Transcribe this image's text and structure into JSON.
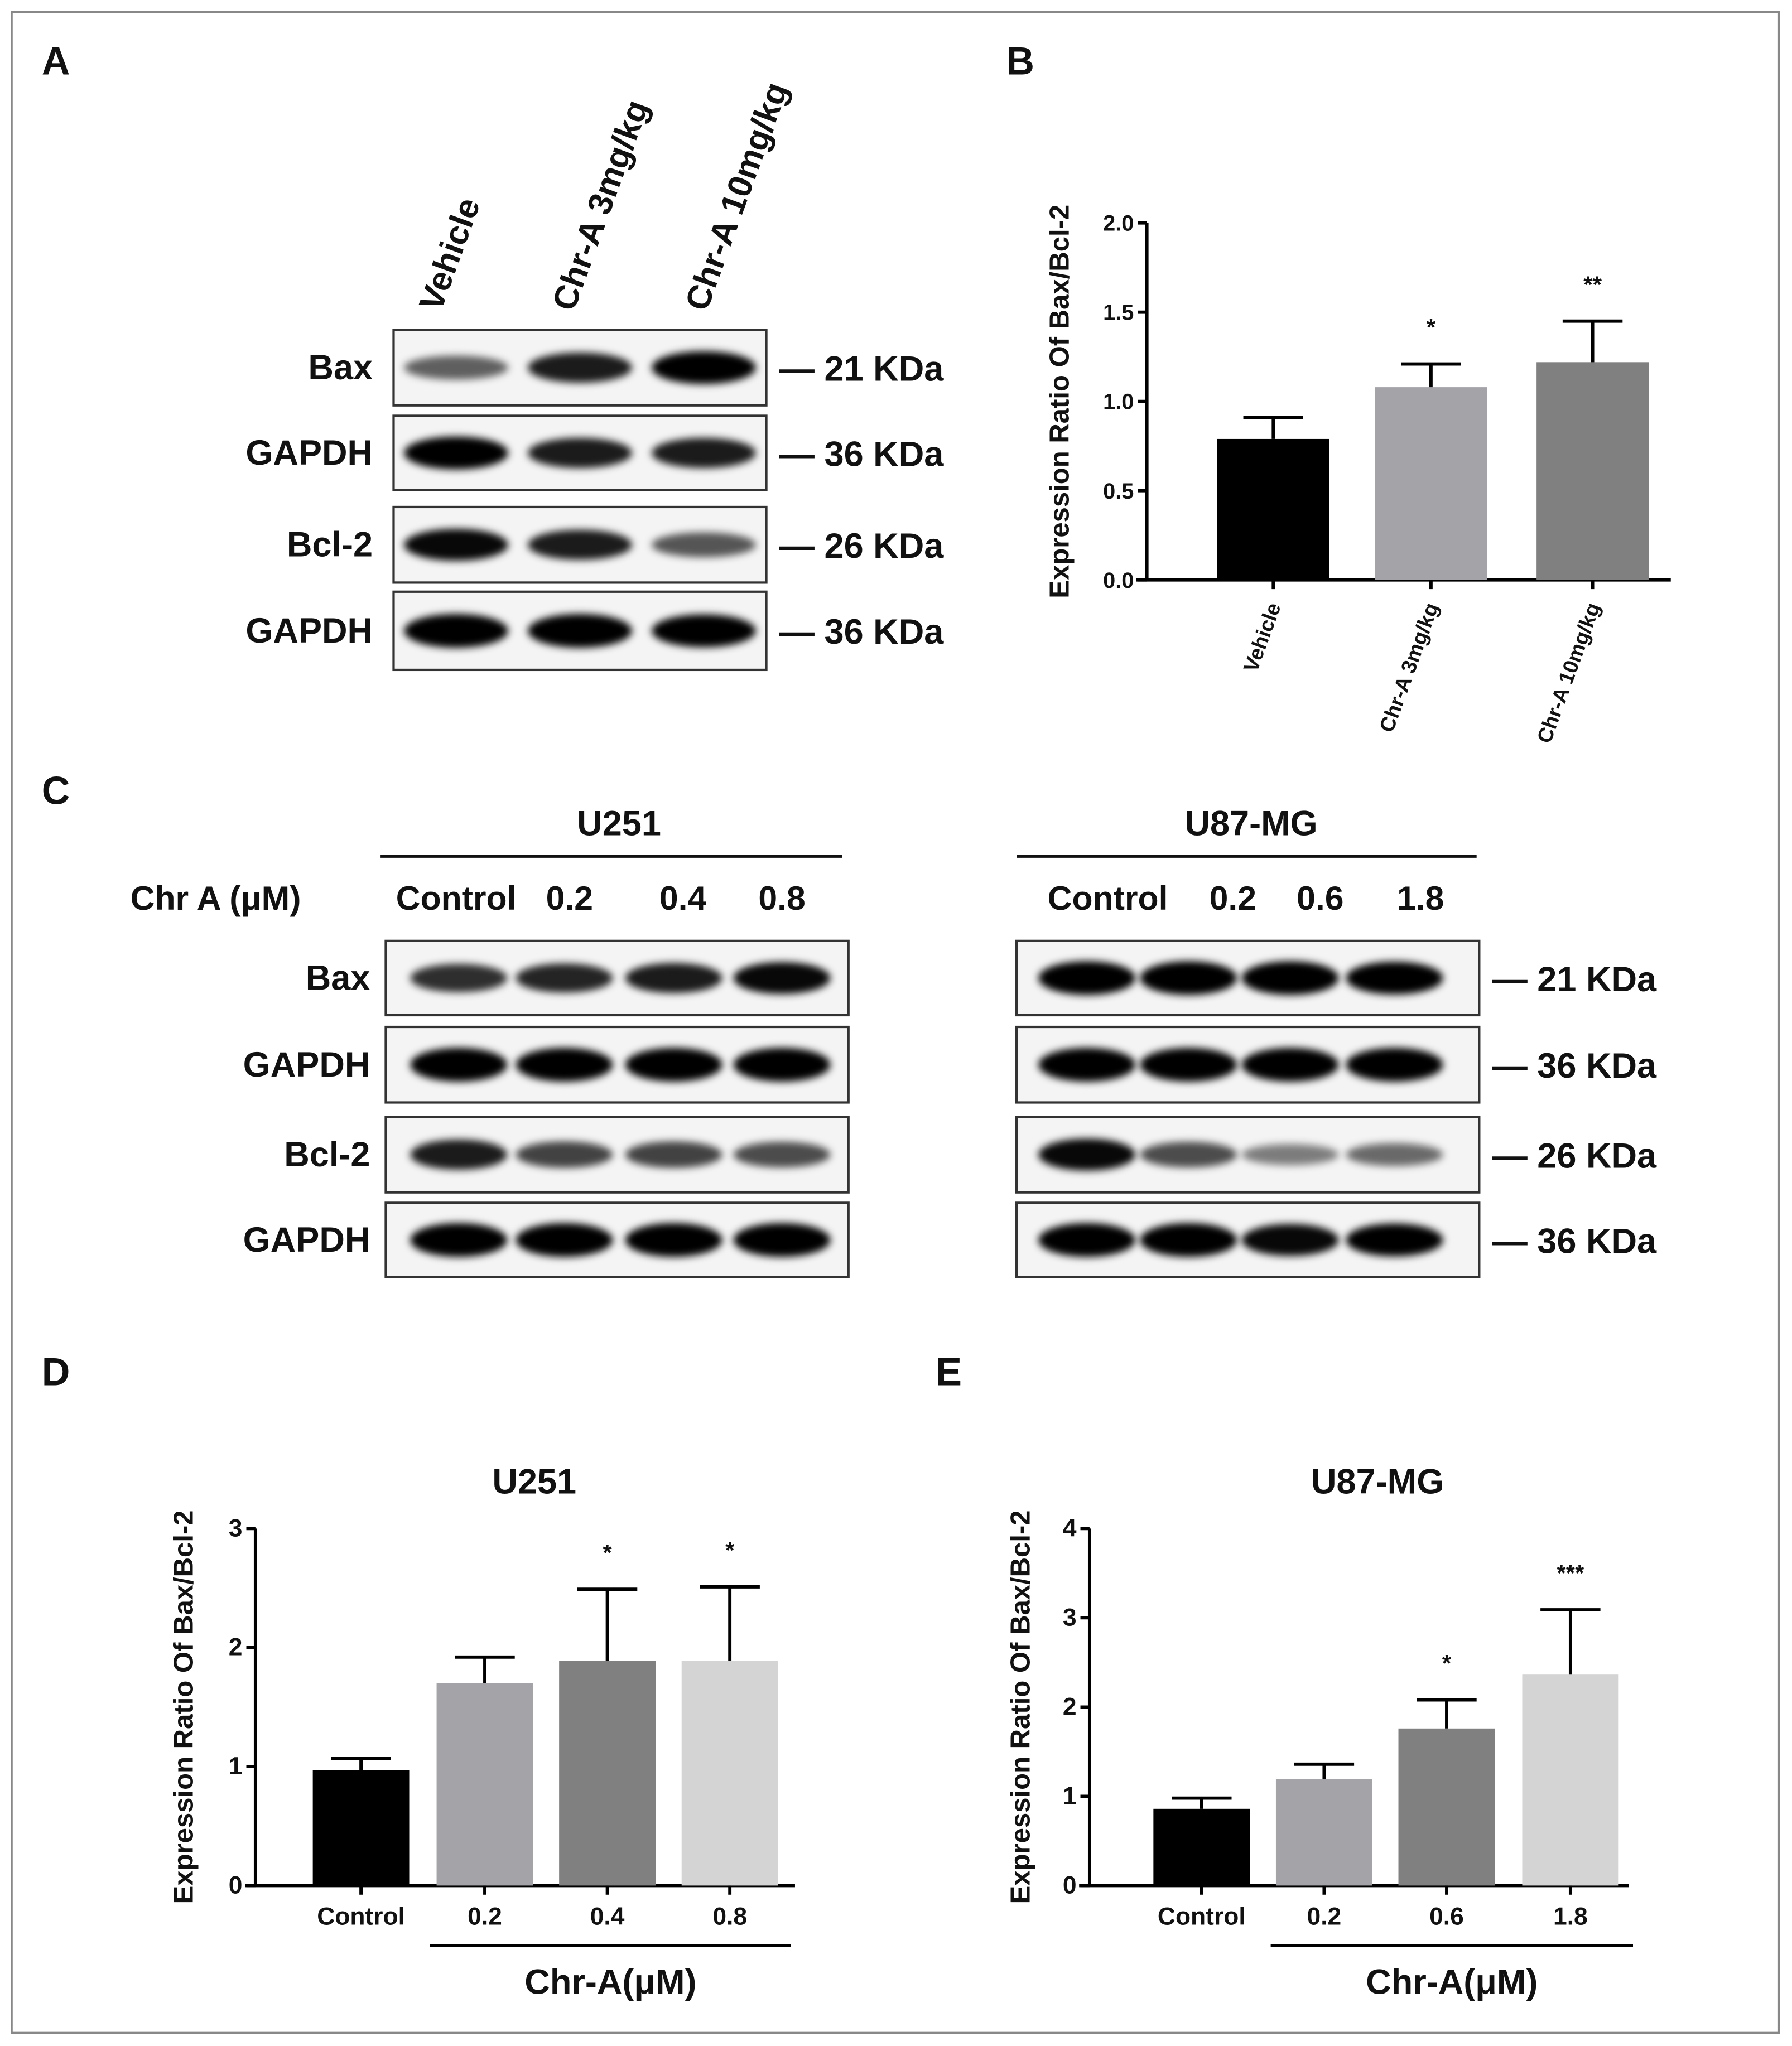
{
  "panels": {
    "a": "A",
    "b": "B",
    "c": "C",
    "d": "D",
    "e": "E"
  },
  "panel_a": {
    "columns": [
      "Vehicle",
      "Chr-A 3mg/kg",
      "Chr-A 10mg/kg"
    ],
    "rows": [
      {
        "label": "Bax",
        "kda": "— 21 KDa",
        "bands": [
          0.45,
          0.8,
          0.95
        ]
      },
      {
        "label": "GAPDH",
        "kda": "— 36 KDa",
        "bands": [
          0.95,
          0.8,
          0.8
        ]
      },
      {
        "label": "Bcl-2",
        "kda": "— 26 KDa",
        "bands": [
          0.9,
          0.8,
          0.5
        ]
      },
      {
        "label": "GAPDH",
        "kda": "— 36 KDa",
        "bands": [
          1,
          1,
          0.95
        ]
      }
    ]
  },
  "panel_c": {
    "treatment_label": "Chr A (μM)",
    "u251": {
      "title": "U251",
      "columns": [
        "Control",
        "0.2",
        "0.4",
        "0.8"
      ],
      "rows": [
        {
          "label": "Bax",
          "bands": [
            0.7,
            0.75,
            0.8,
            0.9
          ]
        },
        {
          "label": "GAPDH",
          "bands": [
            1,
            1,
            1,
            1
          ]
        },
        {
          "label": "Bcl-2",
          "bands": [
            0.8,
            0.6,
            0.6,
            0.55
          ]
        },
        {
          "label": "GAPDH",
          "bands": [
            1,
            1,
            1,
            1
          ]
        }
      ]
    },
    "u87": {
      "title": "U87-MG",
      "columns": [
        "Control",
        "0.2",
        "0.6",
        "1.8"
      ],
      "rows": [
        {
          "label": "Bax",
          "kda": "— 21 KDa",
          "bands": [
            1,
            1,
            1,
            0.95
          ]
        },
        {
          "label": "GAPDH",
          "kda": "— 36 KDa",
          "bands": [
            1,
            1,
            1,
            1
          ]
        },
        {
          "label": "Bcl-2",
          "kda": "— 26 KDa",
          "bands": [
            0.9,
            0.55,
            0.3,
            0.4
          ]
        },
        {
          "label": "GAPDH",
          "kda": "— 36 KDa",
          "bands": [
            1,
            1,
            0.9,
            0.95
          ]
        }
      ]
    }
  },
  "chart_data": [
    {
      "id": "B",
      "type": "bar",
      "title": "",
      "ylabel": "Expression Ratio Of Bax/Bcl-2",
      "xlabel": "",
      "categories": [
        "Vehicle",
        "Chr-A 3mg/kg",
        "Chr-A 10mg/kg"
      ],
      "values": [
        0.79,
        1.08,
        1.22
      ],
      "errors": [
        0.12,
        0.13,
        0.23
      ],
      "significance": [
        "",
        "*",
        "**"
      ],
      "colors": [
        "#000000",
        "#a3a3a8",
        "#808080"
      ],
      "ylim": [
        0,
        2
      ],
      "yticks": [
        "0.0",
        "0.5",
        "1.0",
        "1.5",
        "2.0"
      ],
      "grid": false
    },
    {
      "id": "D",
      "type": "bar",
      "title": "U251",
      "ylabel": "Expression Ratio Of  Bax/Bcl-2",
      "xlabel": "Chr-A(μM)",
      "categories": [
        "Control",
        "0.2",
        "0.4",
        "0.8"
      ],
      "values": [
        0.97,
        1.7,
        1.89,
        1.89
      ],
      "errors": [
        0.1,
        0.22,
        0.6,
        0.62
      ],
      "significance": [
        "",
        "",
        "*",
        "*"
      ],
      "colors": [
        "#000000",
        "#a3a3a8",
        "#808080",
        "#d4d4d4"
      ],
      "ylim": [
        0,
        3
      ],
      "yticks": [
        "0",
        "1",
        "2",
        "3"
      ],
      "grid": false
    },
    {
      "id": "E",
      "type": "bar",
      "title": "U87-MG",
      "ylabel": "Expression Ratio Of  Bax/Bcl-2",
      "xlabel": "Chr-A(μM)",
      "categories": [
        "Control",
        "0.2",
        "0.6",
        "1.8"
      ],
      "values": [
        0.86,
        1.19,
        1.76,
        2.37
      ],
      "errors": [
        0.12,
        0.17,
        0.32,
        0.72
      ],
      "significance": [
        "",
        "",
        "*",
        "***"
      ],
      "colors": [
        "#000000",
        "#a3a3a8",
        "#808080",
        "#d4d4d4"
      ],
      "ylim": [
        0,
        4
      ],
      "yticks": [
        "0",
        "1",
        "2",
        "3",
        "4"
      ],
      "grid": false
    }
  ]
}
